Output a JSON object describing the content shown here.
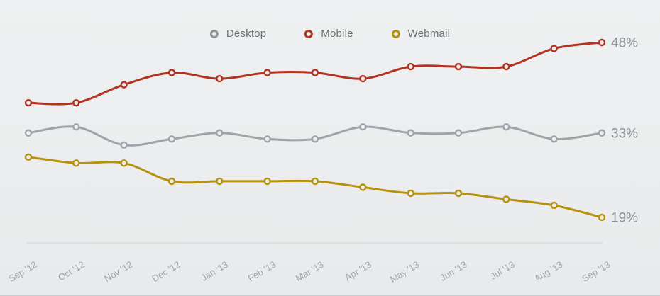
{
  "page": {
    "background_top": "#eef0f1",
    "background_bottom": "#e8eaeb",
    "axis_line_color": "#d9dadc",
    "axis_label_color": "#a2a5a9",
    "end_label_color": "#8d9094",
    "legend_text_color": "#6e7276",
    "marker_fill": "#edeff0"
  },
  "legend": {
    "items": [
      {
        "id": "desktop",
        "label": "Desktop",
        "color": "#8f969b"
      },
      {
        "id": "mobile",
        "label": "Mobile",
        "color": "#b23420"
      },
      {
        "id": "webmail",
        "label": "Webmail",
        "color": "#b6920e"
      }
    ]
  },
  "chart_data": {
    "type": "line",
    "title": "",
    "xlabel": "",
    "ylabel": "",
    "grid": false,
    "legend_position": "top",
    "marker_style": "open-circle",
    "ylim": [
      15,
      52
    ],
    "categories": [
      "Sep '12",
      "Oct '12",
      "Nov '12",
      "Dec '12",
      "Jan '13",
      "Feb '13",
      "Mar '13",
      "Apr '13",
      "May '13",
      "Jun '13",
      "Jul '13",
      "Aug '13",
      "Sep '13"
    ],
    "series": [
      {
        "name": "Desktop",
        "id": "desktop",
        "color": "#9ea4a8",
        "values": [
          33,
          34,
          31,
          32,
          33,
          32,
          32,
          34,
          33,
          33,
          34,
          32,
          33
        ],
        "end_label": "33%"
      },
      {
        "name": "Mobile",
        "id": "mobile",
        "color": "#b23420",
        "values": [
          38,
          38,
          41,
          43,
          42,
          43,
          43,
          42,
          44,
          44,
          44,
          47,
          48
        ],
        "end_label": "48%"
      },
      {
        "name": "Webmail",
        "id": "webmail",
        "color": "#b6920e",
        "values": [
          29,
          28,
          28,
          25,
          25,
          25,
          25,
          24,
          23,
          23,
          22,
          21,
          19
        ],
        "end_label": "19%"
      }
    ]
  }
}
